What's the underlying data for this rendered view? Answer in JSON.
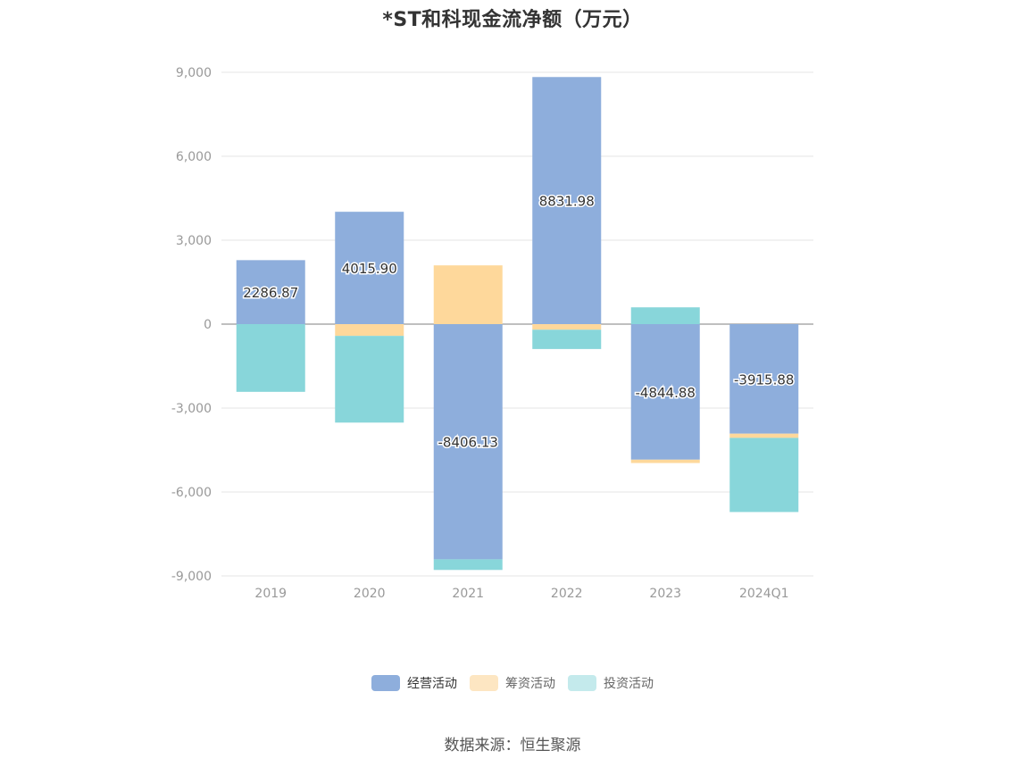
{
  "title": "*ST和科现金流净额（万元）",
  "source": "数据来源：恒生聚源",
  "chart_data": {
    "type": "bar",
    "stacked": true,
    "categories": [
      "2019",
      "2020",
      "2021",
      "2022",
      "2023",
      "2024Q1"
    ],
    "ylim": [
      -9000,
      9000
    ],
    "yticks": [
      9000,
      6000,
      3000,
      0,
      -3000,
      -6000,
      -9000
    ],
    "ytick_labels": [
      "9,000",
      "6,000",
      "3,000",
      "0",
      "-3,000",
      "-6,000",
      "-9,000"
    ],
    "grid": true,
    "legend_position": "bottom",
    "series": [
      {
        "name": "经营活动",
        "color": "#8eaedc",
        "values": [
          2286.87,
          4015.9,
          -8406.13,
          8831.98,
          -4844.88,
          -3915.88
        ],
        "labels": [
          "2286.87",
          "4015.90",
          "-8406.13",
          "8831.98",
          "-4844.88",
          "-3915.88"
        ]
      },
      {
        "name": "筹资活动",
        "color": "#fed89b",
        "values": [
          0,
          -420,
          2100,
          -200,
          -120,
          -150
        ]
      },
      {
        "name": "投资活动",
        "color": "#88d6da",
        "values": [
          -2420,
          -3100,
          -380,
          -690,
          600,
          -2650
        ]
      }
    ]
  },
  "legend": {
    "items": [
      {
        "label": "经营活动",
        "color": "#8eaedc"
      },
      {
        "label": "筹资活动",
        "color": "#fde6c2"
      },
      {
        "label": "投资活动",
        "color": "#c4eaec"
      }
    ]
  }
}
